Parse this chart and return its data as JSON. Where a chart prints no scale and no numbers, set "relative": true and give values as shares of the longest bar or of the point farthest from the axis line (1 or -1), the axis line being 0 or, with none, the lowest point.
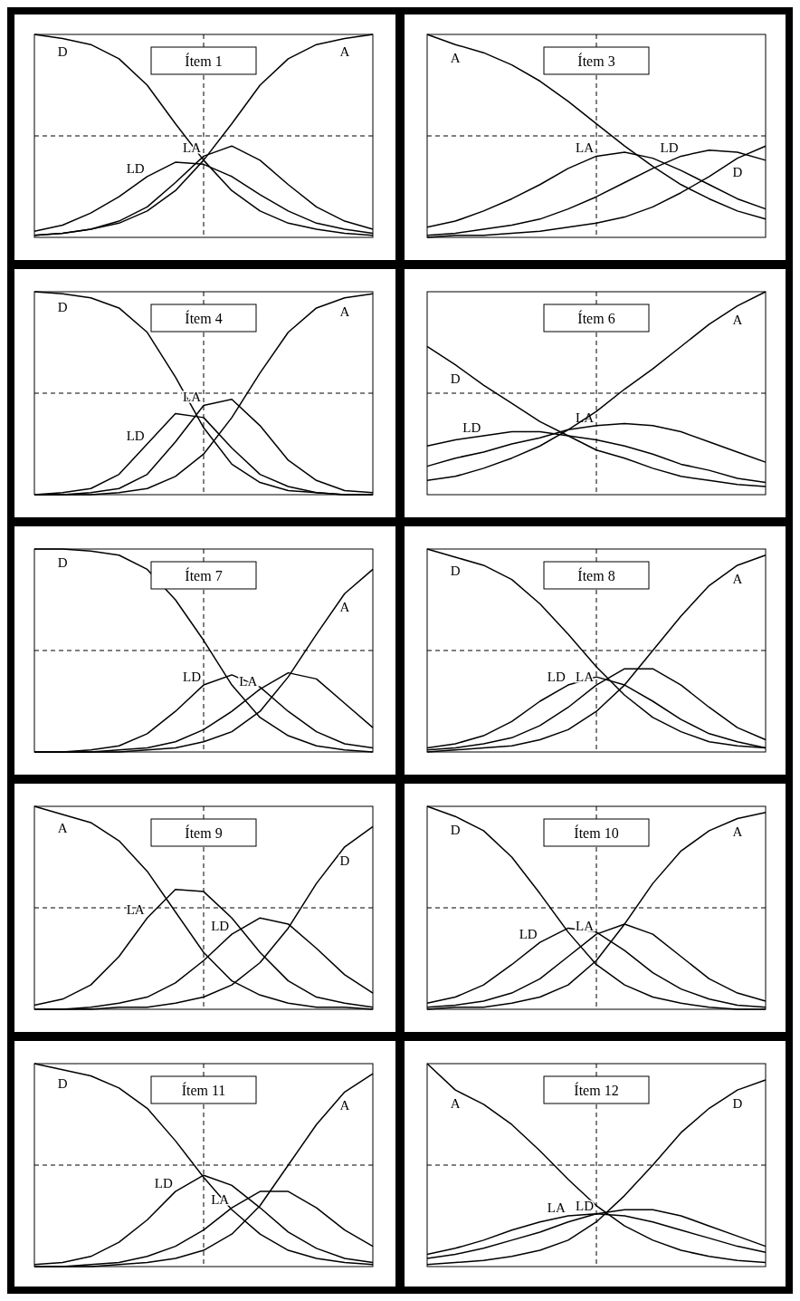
{
  "chart_data": [
    {
      "type": "line",
      "title": "Ítem 1",
      "relative": true,
      "categories": [
        null,
        null,
        null,
        null,
        null,
        null,
        null,
        null,
        null,
        null,
        null,
        null,
        null
      ],
      "line_style": "solid",
      "marker": "none",
      "ref_lines": [
        {
          "axis": "y",
          "value": 0.5,
          "line_style": "dashed"
        }
      ],
      "series": [
        {
          "name": "D",
          "color": "#000000",
          "values": [
            1,
            0.98,
            0.95,
            0.88,
            0.75,
            0.56,
            0.38,
            0.23,
            0.13,
            0.07,
            0.04,
            0.02,
            0.01
          ]
        },
        {
          "name": "LD",
          "color": "#000000",
          "values": [
            0.03,
            0.06,
            0.12,
            0.2,
            0.3,
            0.37,
            0.36,
            0.3,
            0.21,
            0.13,
            0.07,
            0.04,
            0.02
          ]
        },
        {
          "name": "LA",
          "color": "#000000",
          "values": [
            0.01,
            0.02,
            0.04,
            0.08,
            0.15,
            0.27,
            0.4,
            0.45,
            0.38,
            0.26,
            0.15,
            0.08,
            0.04
          ]
        },
        {
          "name": "A",
          "color": "#000000",
          "values": [
            0.01,
            0.02,
            0.04,
            0.07,
            0.13,
            0.23,
            0.38,
            0.56,
            0.75,
            0.88,
            0.95,
            0.98,
            1
          ]
        }
      ]
    },
    {
      "type": "line",
      "title": "Ítem 3",
      "relative": true,
      "categories": [
        null,
        null,
        null,
        null,
        null,
        null,
        null,
        null,
        null,
        null,
        null,
        null,
        null
      ],
      "line_style": "solid",
      "marker": "none",
      "ref_lines": [
        {
          "axis": "y",
          "value": 0.5,
          "line_style": "dashed"
        }
      ],
      "series": [
        {
          "name": "A",
          "color": "#000000",
          "values": [
            1,
            0.95,
            0.91,
            0.85,
            0.77,
            0.67,
            0.56,
            0.45,
            0.35,
            0.26,
            0.19,
            0.13,
            0.09
          ]
        },
        {
          "name": "LA",
          "color": "#000000",
          "values": [
            0.05,
            0.08,
            0.13,
            0.19,
            0.26,
            0.34,
            0.4,
            0.42,
            0.39,
            0.33,
            0.26,
            0.19,
            0.14
          ]
        },
        {
          "name": "LD",
          "color": "#000000",
          "values": [
            0.01,
            0.02,
            0.04,
            0.06,
            0.09,
            0.14,
            0.2,
            0.27,
            0.34,
            0.4,
            0.43,
            0.42,
            0.38
          ]
        },
        {
          "name": "D",
          "color": "#000000",
          "values": [
            0,
            0.01,
            0.01,
            0.02,
            0.03,
            0.05,
            0.07,
            0.1,
            0.15,
            0.22,
            0.3,
            0.39,
            0.45
          ]
        }
      ]
    },
    {
      "type": "line",
      "title": "Ítem 4",
      "relative": true,
      "categories": [
        null,
        null,
        null,
        null,
        null,
        null,
        null,
        null,
        null,
        null,
        null,
        null,
        null
      ],
      "line_style": "solid",
      "marker": "none",
      "ref_lines": [
        {
          "axis": "y",
          "value": 0.5,
          "line_style": "dashed"
        }
      ],
      "series": [
        {
          "name": "D",
          "color": "#000000",
          "values": [
            1,
            0.99,
            0.97,
            0.92,
            0.8,
            0.58,
            0.33,
            0.15,
            0.06,
            0.02,
            0.01,
            0,
            0
          ]
        },
        {
          "name": "LD",
          "color": "#000000",
          "values": [
            0,
            0.01,
            0.03,
            0.1,
            0.25,
            0.4,
            0.38,
            0.23,
            0.1,
            0.04,
            0.01,
            0,
            0
          ]
        },
        {
          "name": "LA",
          "color": "#000000",
          "values": [
            0,
            0,
            0.01,
            0.03,
            0.1,
            0.26,
            0.44,
            0.47,
            0.34,
            0.17,
            0.07,
            0.02,
            0.01
          ]
        },
        {
          "name": "A",
          "color": "#000000",
          "values": [
            0,
            0,
            0,
            0.01,
            0.03,
            0.09,
            0.2,
            0.38,
            0.6,
            0.8,
            0.92,
            0.97,
            0.99
          ]
        }
      ]
    },
    {
      "type": "line",
      "title": "Ítem 6",
      "relative": true,
      "categories": [
        null,
        null,
        null,
        null,
        null,
        null,
        null,
        null,
        null,
        null,
        null,
        null,
        null
      ],
      "line_style": "solid",
      "marker": "none",
      "ref_lines": [
        {
          "axis": "y",
          "value": 0.5,
          "line_style": "dashed"
        }
      ],
      "series": [
        {
          "name": "D",
          "color": "#000000",
          "values": [
            0.73,
            0.64,
            0.54,
            0.45,
            0.36,
            0.29,
            0.22,
            0.18,
            0.13,
            0.09,
            0.07,
            0.05,
            0.04
          ]
        },
        {
          "name": "LD",
          "color": "#000000",
          "values": [
            0.24,
            0.27,
            0.29,
            0.31,
            0.31,
            0.29,
            0.27,
            0.24,
            0.2,
            0.15,
            0.12,
            0.08,
            0.06
          ]
        },
        {
          "name": "LA",
          "color": "#000000",
          "values": [
            0.14,
            0.18,
            0.21,
            0.25,
            0.28,
            0.32,
            0.34,
            0.35,
            0.34,
            0.31,
            0.26,
            0.21,
            0.16
          ]
        },
        {
          "name": "A",
          "color": "#000000",
          "values": [
            0.07,
            0.09,
            0.13,
            0.18,
            0.24,
            0.32,
            0.41,
            0.52,
            0.62,
            0.73,
            0.84,
            0.93,
            1
          ]
        }
      ]
    },
    {
      "type": "line",
      "title": "Ítem 7",
      "relative": true,
      "categories": [
        null,
        null,
        null,
        null,
        null,
        null,
        null,
        null,
        null,
        null,
        null,
        null,
        null
      ],
      "line_style": "solid",
      "marker": "none",
      "ref_lines": [
        {
          "axis": "y",
          "value": 0.5,
          "line_style": "dashed"
        }
      ],
      "series": [
        {
          "name": "D",
          "color": "#000000",
          "values": [
            1,
            1,
            0.99,
            0.97,
            0.9,
            0.75,
            0.55,
            0.33,
            0.17,
            0.08,
            0.03,
            0.01,
            0
          ]
        },
        {
          "name": "LD",
          "color": "#000000",
          "values": [
            0,
            0,
            0.01,
            0.03,
            0.09,
            0.2,
            0.33,
            0.38,
            0.32,
            0.2,
            0.1,
            0.04,
            0.02
          ]
        },
        {
          "name": "LA",
          "color": "#000000",
          "values": [
            0,
            0,
            0,
            0.01,
            0.02,
            0.05,
            0.11,
            0.2,
            0.31,
            0.39,
            0.36,
            0.24,
            0.12
          ]
        },
        {
          "name": "A",
          "color": "#000000",
          "values": [
            0,
            0,
            0,
            0,
            0.01,
            0.02,
            0.05,
            0.1,
            0.2,
            0.37,
            0.58,
            0.78,
            0.9
          ]
        }
      ]
    },
    {
      "type": "line",
      "title": "Ítem 8",
      "relative": true,
      "categories": [
        null,
        null,
        null,
        null,
        null,
        null,
        null,
        null,
        null,
        null,
        null,
        null,
        null
      ],
      "line_style": "solid",
      "marker": "none",
      "ref_lines": [
        {
          "axis": "y",
          "value": 0.5,
          "line_style": "dashed"
        }
      ],
      "series": [
        {
          "name": "D",
          "color": "#000000",
          "values": [
            1,
            0.96,
            0.92,
            0.85,
            0.73,
            0.58,
            0.42,
            0.28,
            0.17,
            0.1,
            0.05,
            0.03,
            0.02
          ]
        },
        {
          "name": "LD",
          "color": "#000000",
          "values": [
            0.02,
            0.04,
            0.08,
            0.15,
            0.25,
            0.33,
            0.37,
            0.33,
            0.25,
            0.16,
            0.09,
            0.05,
            0.02
          ]
        },
        {
          "name": "LA",
          "color": "#000000",
          "values": [
            0.01,
            0.02,
            0.04,
            0.07,
            0.13,
            0.22,
            0.33,
            0.41,
            0.41,
            0.33,
            0.22,
            0.12,
            0.06
          ]
        },
        {
          "name": "A",
          "color": "#000000",
          "values": [
            0,
            0.01,
            0.02,
            0.03,
            0.06,
            0.11,
            0.2,
            0.33,
            0.5,
            0.67,
            0.82,
            0.92,
            0.97
          ]
        }
      ]
    },
    {
      "type": "line",
      "title": "Ítem 9",
      "relative": true,
      "categories": [
        null,
        null,
        null,
        null,
        null,
        null,
        null,
        null,
        null,
        null,
        null,
        null,
        null
      ],
      "line_style": "solid",
      "marker": "none",
      "ref_lines": [
        {
          "axis": "y",
          "value": 0.5,
          "line_style": "dashed"
        }
      ],
      "series": [
        {
          "name": "A",
          "color": "#000000",
          "values": [
            1,
            0.96,
            0.92,
            0.83,
            0.68,
            0.48,
            0.28,
            0.14,
            0.07,
            0.03,
            0.01,
            0.01,
            0
          ]
        },
        {
          "name": "LA",
          "color": "#000000",
          "values": [
            0.02,
            0.05,
            0.12,
            0.26,
            0.45,
            0.59,
            0.58,
            0.45,
            0.28,
            0.14,
            0.06,
            0.03,
            0.01
          ]
        },
        {
          "name": "LD",
          "color": "#000000",
          "values": [
            0,
            0,
            0.01,
            0.03,
            0.06,
            0.13,
            0.24,
            0.37,
            0.45,
            0.42,
            0.3,
            0.17,
            0.08
          ]
        },
        {
          "name": "D",
          "color": "#000000",
          "values": [
            0,
            0,
            0,
            0.01,
            0.01,
            0.03,
            0.06,
            0.12,
            0.23,
            0.4,
            0.62,
            0.8,
            0.9
          ]
        }
      ]
    },
    {
      "type": "line",
      "title": "Ítem 10",
      "relative": true,
      "categories": [
        null,
        null,
        null,
        null,
        null,
        null,
        null,
        null,
        null,
        null,
        null,
        null,
        null
      ],
      "line_style": "solid",
      "marker": "none",
      "ref_lines": [
        {
          "axis": "y",
          "value": 0.5,
          "line_style": "dashed"
        }
      ],
      "series": [
        {
          "name": "D",
          "color": "#000000",
          "values": [
            1,
            0.95,
            0.88,
            0.75,
            0.57,
            0.38,
            0.22,
            0.12,
            0.06,
            0.03,
            0.01,
            0,
            0
          ]
        },
        {
          "name": "LD",
          "color": "#000000",
          "values": [
            0.03,
            0.06,
            0.12,
            0.22,
            0.33,
            0.4,
            0.38,
            0.29,
            0.18,
            0.1,
            0.05,
            0.02,
            0.01
          ]
        },
        {
          "name": "LA",
          "color": "#000000",
          "values": [
            0.01,
            0.02,
            0.04,
            0.08,
            0.15,
            0.26,
            0.37,
            0.42,
            0.37,
            0.26,
            0.15,
            0.08,
            0.04
          ]
        },
        {
          "name": "A",
          "color": "#000000",
          "values": [
            0,
            0.01,
            0.01,
            0.03,
            0.06,
            0.12,
            0.24,
            0.42,
            0.62,
            0.78,
            0.88,
            0.94,
            0.97
          ]
        }
      ]
    },
    {
      "type": "line",
      "title": "Ítem 11",
      "relative": true,
      "categories": [
        null,
        null,
        null,
        null,
        null,
        null,
        null,
        null,
        null,
        null,
        null,
        null,
        null
      ],
      "line_style": "solid",
      "marker": "none",
      "ref_lines": [
        {
          "axis": "y",
          "value": 0.5,
          "line_style": "dashed"
        }
      ],
      "series": [
        {
          "name": "D",
          "color": "#000000",
          "values": [
            1,
            0.97,
            0.94,
            0.88,
            0.78,
            0.62,
            0.44,
            0.28,
            0.16,
            0.08,
            0.04,
            0.02,
            0.01
          ]
        },
        {
          "name": "LD",
          "color": "#000000",
          "values": [
            0.01,
            0.02,
            0.05,
            0.12,
            0.23,
            0.37,
            0.45,
            0.4,
            0.29,
            0.17,
            0.09,
            0.04,
            0.02
          ]
        },
        {
          "name": "LA",
          "color": "#000000",
          "values": [
            0,
            0,
            0.01,
            0.02,
            0.05,
            0.1,
            0.18,
            0.29,
            0.37,
            0.37,
            0.29,
            0.18,
            0.1
          ]
        },
        {
          "name": "A",
          "color": "#000000",
          "values": [
            0,
            0,
            0,
            0.01,
            0.02,
            0.04,
            0.08,
            0.16,
            0.3,
            0.5,
            0.7,
            0.86,
            0.95
          ]
        }
      ]
    },
    {
      "type": "line",
      "title": "Ítem 12",
      "relative": true,
      "categories": [
        null,
        null,
        null,
        null,
        null,
        null,
        null,
        null,
        null,
        null,
        null,
        null,
        null
      ],
      "line_style": "solid",
      "marker": "none",
      "ref_lines": [
        {
          "axis": "y",
          "value": 0.5,
          "line_style": "dashed"
        }
      ],
      "series": [
        {
          "name": "A",
          "color": "#000000",
          "values": [
            1,
            0.87,
            0.8,
            0.7,
            0.57,
            0.43,
            0.3,
            0.2,
            0.13,
            0.08,
            0.05,
            0.03,
            0.02
          ]
        },
        {
          "name": "LA",
          "color": "#000000",
          "values": [
            0.06,
            0.09,
            0.13,
            0.18,
            0.22,
            0.25,
            0.26,
            0.25,
            0.22,
            0.18,
            0.14,
            0.1,
            0.07
          ]
        },
        {
          "name": "LD",
          "color": "#000000",
          "values": [
            0.04,
            0.06,
            0.09,
            0.13,
            0.17,
            0.22,
            0.26,
            0.28,
            0.28,
            0.25,
            0.2,
            0.15,
            0.1
          ]
        },
        {
          "name": "D",
          "color": "#000000",
          "values": [
            0.01,
            0.02,
            0.03,
            0.05,
            0.08,
            0.13,
            0.22,
            0.35,
            0.5,
            0.66,
            0.78,
            0.87,
            0.92
          ]
        }
      ]
    }
  ]
}
